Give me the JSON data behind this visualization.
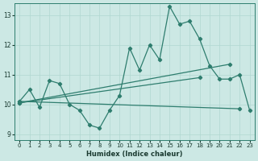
{
  "xlabel": "Humidex (Indice chaleur)",
  "bg_color": "#cce8e4",
  "line_color": "#2e7d6e",
  "grid_color": "#b0d8d0",
  "xlim": [
    -0.5,
    23.5
  ],
  "ylim": [
    8.8,
    13.4
  ],
  "yticks": [
    9,
    10,
    11,
    12,
    13
  ],
  "xticks": [
    0,
    1,
    2,
    3,
    4,
    5,
    6,
    7,
    8,
    9,
    10,
    11,
    12,
    13,
    14,
    15,
    16,
    17,
    18,
    19,
    20,
    21,
    22,
    23
  ],
  "line1": [
    10.1,
    10.5,
    9.9,
    10.8,
    10.7,
    10.0,
    9.8,
    9.3,
    9.2,
    9.8,
    10.3,
    11.9,
    11.15,
    12.0,
    11.5,
    13.3,
    12.7,
    12.8,
    12.2,
    11.3,
    10.85,
    10.85,
    11.0,
    9.8
  ],
  "line2_x": [
    0,
    21
  ],
  "line2_y": [
    10.05,
    11.35
  ],
  "line3_x": [
    0,
    22
  ],
  "line3_y": [
    10.1,
    9.85
  ],
  "line4_x": [
    0,
    18
  ],
  "line4_y": [
    10.05,
    10.9
  ]
}
